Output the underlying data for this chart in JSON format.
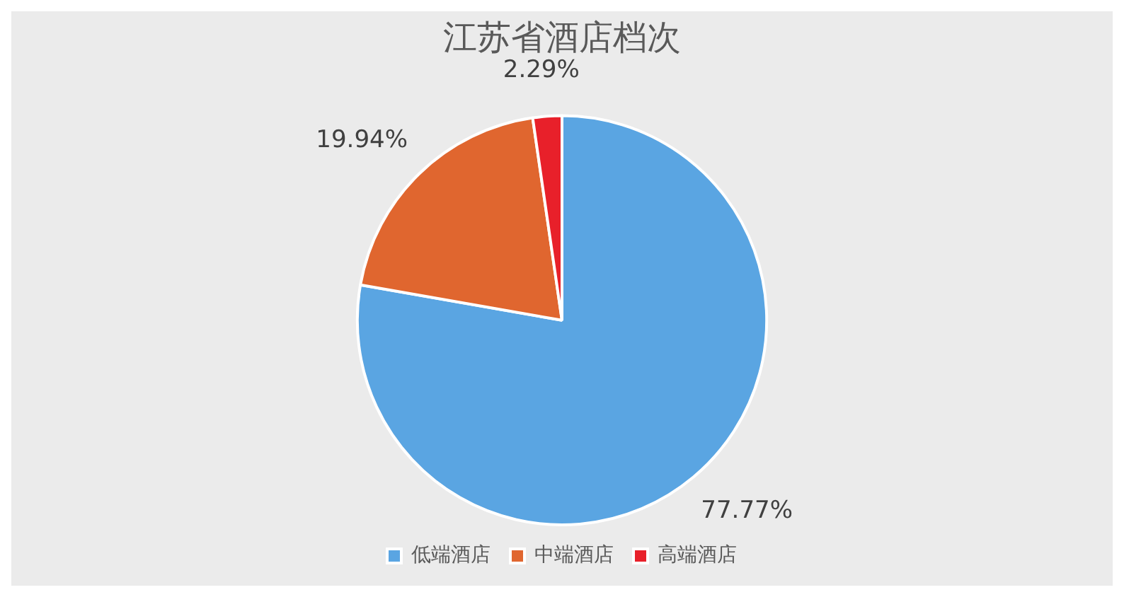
{
  "chart_data": {
    "type": "pie",
    "title": "江苏省酒店档次",
    "categories": [
      "低端酒店",
      "中端酒店",
      "高端酒店"
    ],
    "values": [
      77.77,
      19.94,
      2.29
    ],
    "colors": [
      "#5aa5e2",
      "#e0662f",
      "#e8202a"
    ],
    "value_labels": [
      "77.77%",
      "19.94%",
      "2.29%"
    ],
    "legend": "bottom"
  }
}
